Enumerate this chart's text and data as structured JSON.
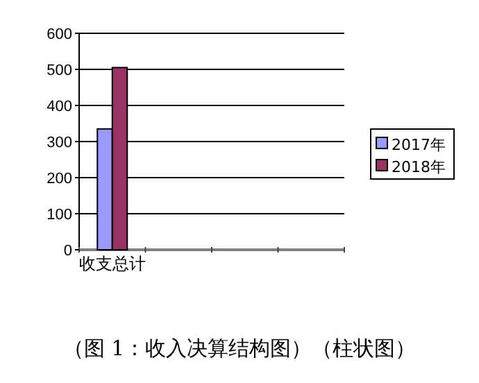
{
  "chart_data": {
    "type": "bar",
    "categories": [
      "收支总计",
      null,
      null,
      null
    ],
    "series": [
      {
        "name": "2017年",
        "color": "#9999ff",
        "values": [
          335,
          null,
          null,
          null
        ]
      },
      {
        "name": "2018年",
        "color": "#993366",
        "values": [
          505,
          null,
          null,
          null
        ]
      }
    ],
    "ylim": [
      0,
      600
    ],
    "yticks": [
      0,
      100,
      200,
      300,
      400,
      500,
      600
    ],
    "grid": "y",
    "legend": "right",
    "annotations": [
      "（图 1：收入决算结构图）（柱状图）"
    ]
  }
}
